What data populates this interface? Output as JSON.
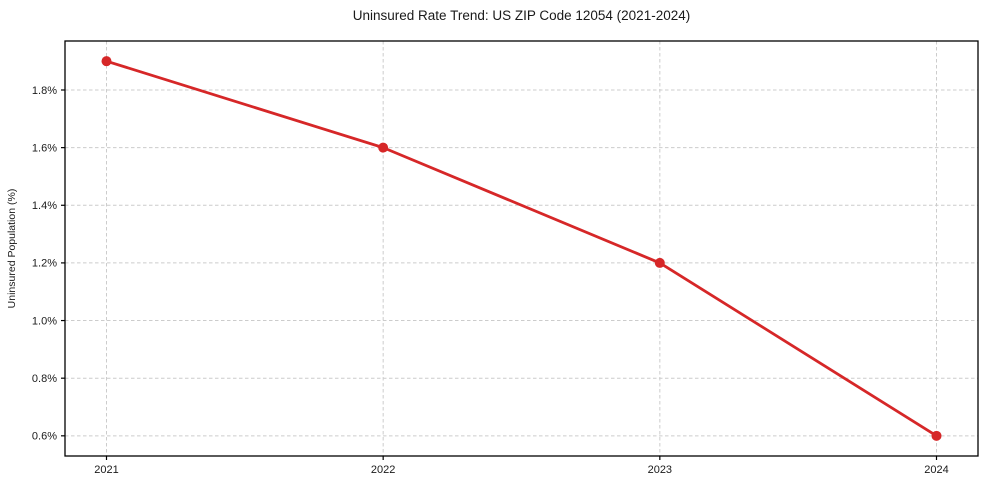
{
  "chart_data": {
    "type": "line",
    "title": "Uninsured Rate Trend: US ZIP Code 12054 (2021-2024)",
    "xlabel": "",
    "ylabel": "Uninsured Population (%)",
    "x": [
      2021,
      2022,
      2023,
      2024
    ],
    "series": [
      {
        "name": "Uninsured Population (%)",
        "values": [
          1.9,
          1.6,
          1.2,
          0.6
        ]
      }
    ],
    "xlim": [
      2020.85,
      2024.15
    ],
    "ylim": [
      0.53,
      1.97
    ],
    "xticks": [
      2021,
      2022,
      2023,
      2024
    ],
    "xtick_labels": [
      "2021",
      "2022",
      "2023",
      "2024"
    ],
    "yticks": [
      0.6,
      0.8,
      1.0,
      1.2,
      1.4,
      1.6,
      1.8
    ],
    "ytick_labels": [
      "0.6%",
      "0.8%",
      "1.0%",
      "1.2%",
      "1.4%",
      "1.6%",
      "1.8%"
    ],
    "grid": true,
    "legend": "none",
    "marker": "circle",
    "colors": {
      "line": "#d62728",
      "marker": "#d62728",
      "grid": "#cccccc",
      "spine": "#000000",
      "text": "#1a1a1a",
      "background": "#ffffff"
    }
  }
}
